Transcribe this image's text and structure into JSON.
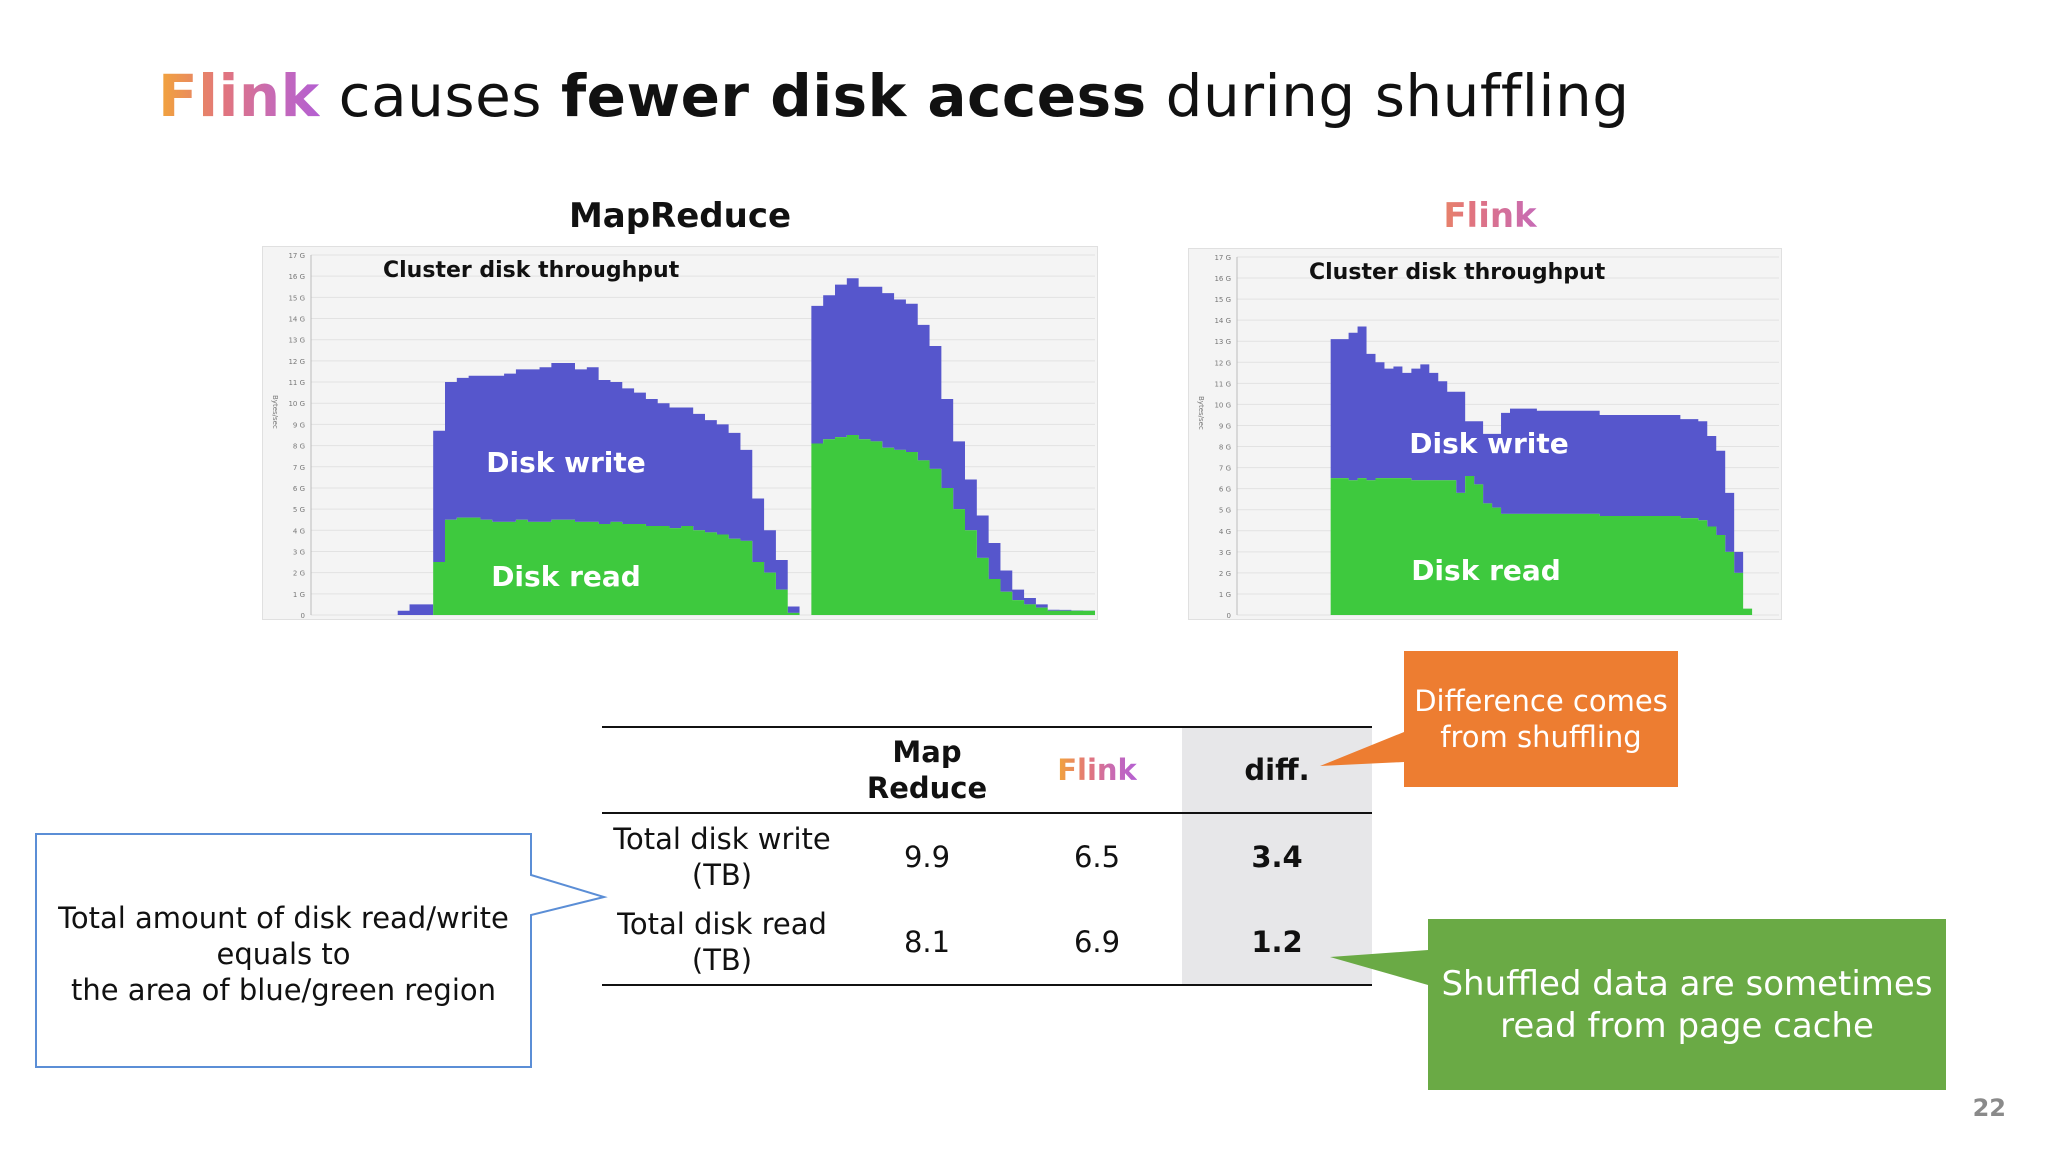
{
  "title": {
    "flink": "Flink",
    "part1": " causes ",
    "bold": "fewer disk access",
    "part2": " during shuffling"
  },
  "chart_data": [
    {
      "type": "area",
      "title": "MapReduce",
      "annotation": "Cluster disk throughput",
      "ylabel": "Bytes/sec",
      "series": [
        {
          "name": "Disk write",
          "color": "#5656cc",
          "values": [
            0,
            0,
            0,
            0,
            0,
            0,
            0,
            0.2,
            0.5,
            0.5,
            6.2,
            6.5,
            6.6,
            6.7,
            6.8,
            6.9,
            7.0,
            7.1,
            7.2,
            7.3,
            7.4,
            7.4,
            7.2,
            7.3,
            6.8,
            6.6,
            6.4,
            6.2,
            6.0,
            5.8,
            5.7,
            5.6,
            5.5,
            5.3,
            5.2,
            5.0,
            4.3,
            3.0,
            2.0,
            1.4,
            0.3,
            0.0,
            6.5,
            6.8,
            7.2,
            7.4,
            7.2,
            7.3,
            7.3,
            7.1,
            7.0,
            6.4,
            5.8,
            4.2,
            3.2,
            2.4,
            2.0,
            1.7,
            1.0,
            0.5,
            0.3,
            0.15,
            0.05,
            0.04,
            0.02,
            0.01
          ]
        },
        {
          "name": "Disk read",
          "color": "#3ec93e",
          "values": [
            0,
            0,
            0,
            0,
            0,
            0,
            0,
            0,
            0,
            0,
            2.5,
            4.5,
            4.6,
            4.6,
            4.5,
            4.4,
            4.4,
            4.5,
            4.4,
            4.4,
            4.5,
            4.5,
            4.4,
            4.4,
            4.3,
            4.4,
            4.3,
            4.3,
            4.2,
            4.2,
            4.1,
            4.2,
            4.0,
            3.9,
            3.8,
            3.6,
            3.5,
            2.5,
            2.0,
            1.2,
            0.1,
            0.0,
            8.1,
            8.3,
            8.4,
            8.5,
            8.3,
            8.2,
            7.9,
            7.8,
            7.7,
            7.3,
            6.9,
            6.0,
            5.0,
            4.0,
            2.7,
            1.7,
            1.1,
            0.7,
            0.5,
            0.35,
            0.2,
            0.2,
            0.2,
            0.2
          ]
        }
      ],
      "ylim": [
        0,
        17
      ],
      "y_ticks": [
        "0",
        "1 G",
        "2 G",
        "3 G",
        "4 G",
        "5 G",
        "6 G",
        "7 G",
        "8 G",
        "9 G",
        "10 G",
        "11 G",
        "12 G",
        "13 G",
        "14 G",
        "15 G",
        "16 G",
        "17 G"
      ]
    },
    {
      "type": "area",
      "title": "Flink",
      "annotation": "Cluster disk throughput",
      "ylabel": "Bytes/sec",
      "series": [
        {
          "name": "Disk write",
          "color": "#5656cc",
          "values": [
            0,
            0,
            0,
            0,
            0,
            0,
            0,
            0,
            0,
            0,
            6.6,
            6.6,
            7.0,
            7.2,
            6.0,
            5.5,
            5.2,
            5.3,
            5.0,
            5.3,
            5.5,
            5.1,
            4.7,
            4.2,
            4.8,
            2.6,
            3.0,
            3.3,
            3.5,
            4.8,
            5.0,
            5.0,
            5.0,
            4.9,
            4.9,
            4.9,
            4.9,
            4.9,
            4.9,
            4.9,
            4.8,
            4.8,
            4.8,
            4.8,
            4.8,
            4.8,
            4.8,
            4.8,
            4.8,
            4.7,
            4.7,
            4.7,
            4.3,
            4.0,
            2.8,
            1.0,
            0.0,
            0,
            0,
            0
          ]
        },
        {
          "name": "Disk read",
          "color": "#3ec93e",
          "values": [
            0,
            0,
            0,
            0,
            0,
            0,
            0,
            0,
            0,
            0,
            6.5,
            6.5,
            6.4,
            6.5,
            6.4,
            6.5,
            6.5,
            6.5,
            6.5,
            6.4,
            6.4,
            6.4,
            6.4,
            6.4,
            5.8,
            6.6,
            6.2,
            5.3,
            5.1,
            4.8,
            4.8,
            4.8,
            4.8,
            4.8,
            4.8,
            4.8,
            4.8,
            4.8,
            4.8,
            4.8,
            4.7,
            4.7,
            4.7,
            4.7,
            4.7,
            4.7,
            4.7,
            4.7,
            4.7,
            4.6,
            4.6,
            4.5,
            4.2,
            3.8,
            3.0,
            2.0,
            0.3,
            0,
            0,
            0
          ]
        }
      ],
      "ylim": [
        0,
        17
      ],
      "y_ticks": [
        "0",
        "1 G",
        "2 G",
        "3 G",
        "4 G",
        "5 G",
        "6 G",
        "7 G",
        "8 G",
        "9 G",
        "10 G",
        "11 G",
        "12 G",
        "13 G",
        "14 G",
        "15 G",
        "16 G",
        "17 G"
      ]
    }
  ],
  "table": {
    "headers": [
      "",
      "Map\nReduce",
      "Flink",
      "diff."
    ],
    "rows": [
      {
        "label": "Total disk write\n(TB)",
        "mapreduce": "9.9",
        "flink": "6.5",
        "diff": "3.4"
      },
      {
        "label": "Total disk read\n(TB)",
        "mapreduce": "8.1",
        "flink": "6.9",
        "diff": "1.2"
      }
    ]
  },
  "callouts": {
    "orange": {
      "text": "Difference comes\nfrom shuffling",
      "color": "#ed7d31"
    },
    "green": {
      "text": "Shuffled data are sometimes\nread from page cache",
      "color": "#6aaa45"
    },
    "left": {
      "text": "Total amount of disk read/write\nequals to\nthe area of blue/green region",
      "border": "#5b8ed6"
    }
  },
  "page_number": "22"
}
